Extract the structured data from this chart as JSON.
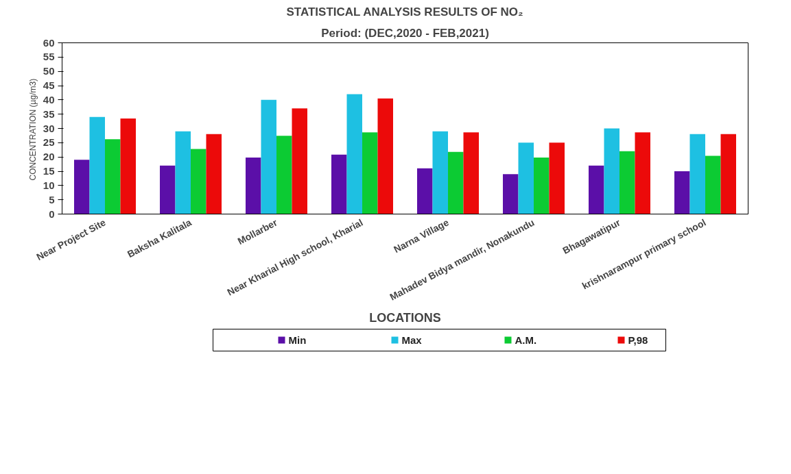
{
  "chart_data": {
    "type": "bar",
    "title": "STATISTICAL ANALYSIS RESULTS OF NO₂",
    "subtitle": "Period: (DEC,2020 - FEB,2021)",
    "xlabel": "LOCATIONS",
    "ylabel": "CONCENTRATION  (µg/m3)",
    "categories": [
      "Near Project Site",
      "Baksha Kalitala",
      "Mollarber",
      "Near Kharial High school, Kharial",
      "Narna Village",
      "Mahadev Bidya mandir, Nonakundu",
      "Bhagawatipur",
      "krishnarampur primary school"
    ],
    "series": [
      {
        "name": "Min",
        "color": "#5b0fa8",
        "values": [
          19,
          17,
          19.8,
          20.8,
          16,
          14,
          17,
          15
        ]
      },
      {
        "name": "Max",
        "color": "#1ec0e2",
        "values": [
          34,
          29,
          40,
          42,
          29,
          25,
          30,
          28
        ]
      },
      {
        "name": "A.M.",
        "color": "#0ccb33",
        "values": [
          26.2,
          22.8,
          27.4,
          28.6,
          21.8,
          19.8,
          22,
          20.4
        ]
      },
      {
        "name": "P,98",
        "color": "#ec0a0a",
        "values": [
          33.5,
          28,
          37,
          40.5,
          28.6,
          25,
          28.6,
          28
        ]
      }
    ],
    "ylim": [
      0,
      60
    ],
    "yticks": [
      0,
      5,
      10,
      15,
      20,
      25,
      30,
      35,
      40,
      45,
      50,
      55,
      60
    ],
    "grid": false,
    "legend": "bottom"
  }
}
